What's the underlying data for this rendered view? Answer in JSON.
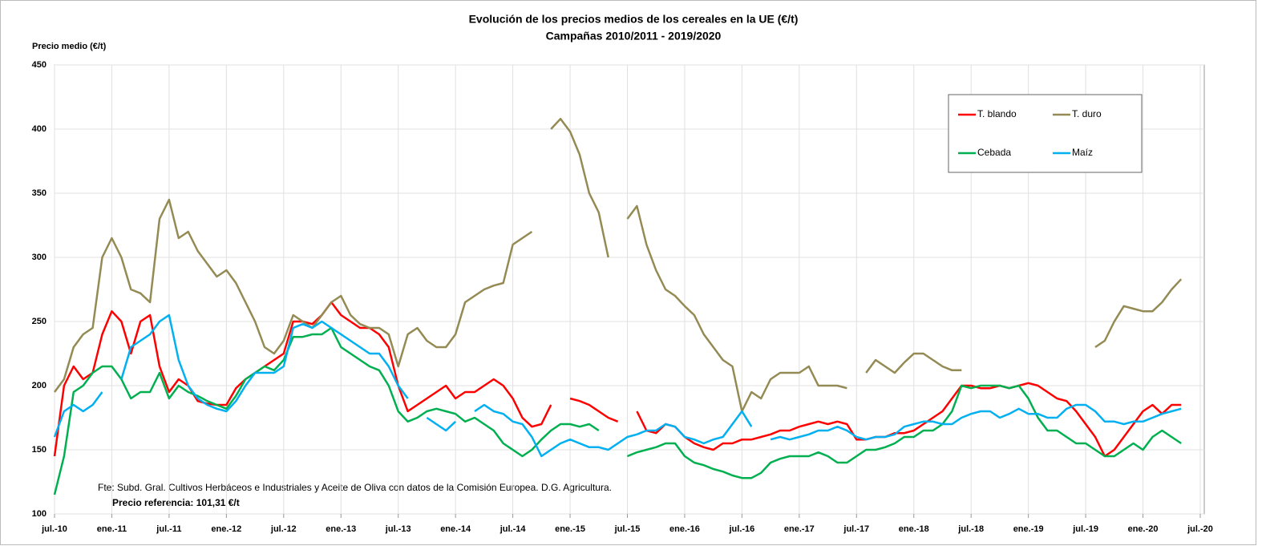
{
  "chart_data": {
    "type": "line",
    "title": "Evolución de los precios medios de los cereales en la UE (€/t)",
    "subtitle": "Campañas 2010/2011 - 2019/2020",
    "y_label": "Precio medio (€/t)",
    "annotations": [
      "Fte: Subd. Gral. Cultivos Herbáceos e Industriales  y Aceite de Oliva con datos de la Comisión Europea. D.G. Agricultura.",
      "Precio referencia: 101,31 €/t"
    ],
    "x": [
      "2010-07",
      "2010-08",
      "2010-09",
      "2010-10",
      "2010-11",
      "2010-12",
      "2011-01",
      "2011-02",
      "2011-03",
      "2011-04",
      "2011-05",
      "2011-06",
      "2011-07",
      "2011-08",
      "2011-09",
      "2011-10",
      "2011-11",
      "2011-12",
      "2012-01",
      "2012-02",
      "2012-03",
      "2012-04",
      "2012-05",
      "2012-06",
      "2012-07",
      "2012-08",
      "2012-09",
      "2012-10",
      "2012-11",
      "2012-12",
      "2013-01",
      "2013-02",
      "2013-03",
      "2013-04",
      "2013-05",
      "2013-06",
      "2013-07",
      "2013-08",
      "2013-09",
      "2013-10",
      "2013-11",
      "2013-12",
      "2014-01",
      "2014-02",
      "2014-03",
      "2014-04",
      "2014-05",
      "2014-06",
      "2014-07",
      "2014-08",
      "2014-09",
      "2014-10",
      "2014-11",
      "2014-12",
      "2015-01",
      "2015-02",
      "2015-03",
      "2015-04",
      "2015-05",
      "2015-06",
      "2015-07",
      "2015-08",
      "2015-09",
      "2015-10",
      "2015-11",
      "2015-12",
      "2016-01",
      "2016-02",
      "2016-03",
      "2016-04",
      "2016-05",
      "2016-06",
      "2016-07",
      "2016-08",
      "2016-09",
      "2016-10",
      "2016-11",
      "2016-12",
      "2017-01",
      "2017-02",
      "2017-03",
      "2017-04",
      "2017-05",
      "2017-06",
      "2017-07",
      "2017-08",
      "2017-09",
      "2017-10",
      "2017-11",
      "2017-12",
      "2018-01",
      "2018-02",
      "2018-03",
      "2018-04",
      "2018-05",
      "2018-06",
      "2018-07",
      "2018-08",
      "2018-09",
      "2018-10",
      "2018-11",
      "2018-12",
      "2019-01",
      "2019-02",
      "2019-03",
      "2019-04",
      "2019-05",
      "2019-06",
      "2019-07",
      "2019-08",
      "2019-09",
      "2019-10",
      "2019-11",
      "2019-12",
      "2020-01",
      "2020-02",
      "2020-03",
      "2020-04",
      "2020-05"
    ],
    "series": [
      {
        "name": "T. blando",
        "color": "#ff0000",
        "values": [
          145,
          200,
          215,
          205,
          210,
          240,
          258,
          250,
          225,
          250,
          255,
          215,
          195,
          205,
          200,
          188,
          186,
          185,
          185,
          198,
          205,
          210,
          215,
          220,
          225,
          250,
          250,
          248,
          255,
          265,
          255,
          250,
          245,
          245,
          240,
          230,
          200,
          180,
          185,
          190,
          195,
          200,
          190,
          195,
          195,
          200,
          205,
          200,
          190,
          175,
          168,
          170,
          185,
          null,
          190,
          188,
          185,
          180,
          175,
          172,
          null,
          180,
          165,
          163,
          170,
          168,
          160,
          155,
          152,
          150,
          155,
          155,
          158,
          158,
          160,
          162,
          165,
          165,
          168,
          170,
          172,
          170,
          172,
          170,
          158,
          158,
          160,
          160,
          163,
          163,
          165,
          170,
          175,
          180,
          190,
          200,
          200,
          198,
          198,
          200,
          198,
          200,
          202,
          200,
          195,
          190,
          188,
          180,
          170,
          160,
          145,
          150,
          160,
          170,
          180,
          185,
          178,
          185,
          185
        ]
      },
      {
        "name": "T. duro",
        "color": "#948a54",
        "values": [
          195,
          205,
          230,
          240,
          245,
          300,
          315,
          300,
          275,
          272,
          265,
          330,
          345,
          315,
          320,
          305,
          295,
          285,
          290,
          280,
          265,
          250,
          230,
          225,
          235,
          255,
          250,
          245,
          255,
          265,
          270,
          255,
          248,
          245,
          245,
          240,
          215,
          240,
          245,
          235,
          230,
          230,
          240,
          265,
          270,
          275,
          278,
          280,
          310,
          315,
          320,
          null,
          400,
          408,
          398,
          380,
          350,
          335,
          300,
          null,
          330,
          340,
          310,
          290,
          275,
          270,
          262,
          255,
          240,
          230,
          220,
          215,
          180,
          195,
          190,
          205,
          210,
          210,
          210,
          215,
          200,
          200,
          200,
          198,
          null,
          210,
          220,
          215,
          210,
          218,
          225,
          225,
          220,
          215,
          212,
          212,
          null,
          null,
          null,
          null,
          null,
          null,
          null,
          null,
          null,
          null,
          null,
          null,
          null,
          230,
          235,
          250,
          262,
          260,
          258,
          258,
          265,
          275,
          283
        ]
      },
      {
        "name": "Cebada",
        "color": "#00b050",
        "values": [
          115,
          145,
          195,
          200,
          210,
          215,
          215,
          205,
          190,
          195,
          195,
          210,
          190,
          200,
          195,
          192,
          188,
          185,
          182,
          192,
          205,
          210,
          215,
          212,
          220,
          238,
          238,
          240,
          240,
          245,
          230,
          225,
          220,
          215,
          212,
          200,
          180,
          172,
          175,
          180,
          182,
          180,
          178,
          172,
          175,
          170,
          165,
          155,
          150,
          145,
          150,
          158,
          165,
          170,
          170,
          168,
          170,
          165,
          null,
          null,
          145,
          148,
          150,
          152,
          155,
          155,
          145,
          140,
          138,
          135,
          133,
          130,
          128,
          128,
          132,
          140,
          143,
          145,
          145,
          145,
          148,
          145,
          140,
          140,
          145,
          150,
          150,
          152,
          155,
          160,
          160,
          165,
          165,
          170,
          180,
          200,
          198,
          200,
          200,
          200,
          198,
          200,
          190,
          175,
          165,
          165,
          160,
          155,
          155,
          150,
          145,
          145,
          150,
          155,
          150,
          160,
          165,
          160,
          155
        ]
      },
      {
        "name": "Maíz",
        "color": "#00b0f0",
        "values": [
          160,
          180,
          185,
          180,
          185,
          195,
          null,
          205,
          230,
          235,
          240,
          250,
          255,
          220,
          200,
          190,
          185,
          182,
          180,
          188,
          200,
          210,
          210,
          210,
          215,
          245,
          248,
          245,
          250,
          245,
          240,
          235,
          230,
          225,
          225,
          215,
          200,
          190,
          null,
          175,
          170,
          165,
          172,
          null,
          180,
          185,
          180,
          178,
          172,
          170,
          160,
          145,
          150,
          155,
          158,
          155,
          152,
          152,
          150,
          155,
          160,
          162,
          165,
          165,
          170,
          168,
          160,
          158,
          155,
          158,
          160,
          170,
          180,
          168,
          null,
          158,
          160,
          158,
          160,
          162,
          165,
          165,
          168,
          165,
          160,
          158,
          160,
          160,
          162,
          168,
          170,
          172,
          172,
          170,
          170,
          175,
          178,
          180,
          180,
          175,
          178,
          182,
          178,
          178,
          175,
          175,
          182,
          185,
          185,
          180,
          172,
          172,
          170,
          172,
          172,
          175,
          178,
          180,
          182
        ]
      }
    ],
    "xlim": [
      "2010-07",
      "2020-07"
    ],
    "xticks": [
      {
        "value": "2010-07",
        "label": "jul.-10"
      },
      {
        "value": "2011-01",
        "label": "ene.-11"
      },
      {
        "value": "2011-07",
        "label": "jul.-11"
      },
      {
        "value": "2012-01",
        "label": "ene.-12"
      },
      {
        "value": "2012-07",
        "label": "jul.-12"
      },
      {
        "value": "2013-01",
        "label": "ene.-13"
      },
      {
        "value": "2013-07",
        "label": "jul.-13"
      },
      {
        "value": "2014-01",
        "label": "ene.-14"
      },
      {
        "value": "2014-07",
        "label": "jul.-14"
      },
      {
        "value": "2015-01",
        "label": "ene.-15"
      },
      {
        "value": "2015-07",
        "label": "jul.-15"
      },
      {
        "value": "2016-01",
        "label": "ene.-16"
      },
      {
        "value": "2016-07",
        "label": "jul.-16"
      },
      {
        "value": "2017-01",
        "label": "ene.-17"
      },
      {
        "value": "2017-07",
        "label": "jul.-17"
      },
      {
        "value": "2018-01",
        "label": "ene.-18"
      },
      {
        "value": "2018-07",
        "label": "jul.-18"
      },
      {
        "value": "2019-01",
        "label": "ene.-19"
      },
      {
        "value": "2019-07",
        "label": "jul.-19"
      },
      {
        "value": "2020-01",
        "label": "ene.-20"
      },
      {
        "value": "2020-07",
        "label": "jul.-20"
      }
    ],
    "ylim": [
      100,
      450
    ],
    "yticks": [
      100,
      150,
      200,
      250,
      300,
      350,
      400,
      450
    ],
    "grid": true,
    "legend": "upper right"
  }
}
